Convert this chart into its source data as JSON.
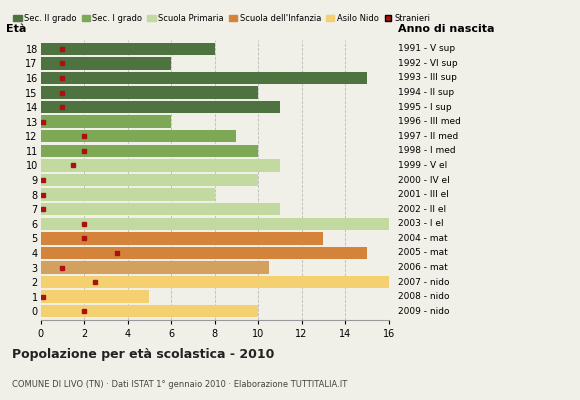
{
  "ages": [
    18,
    17,
    16,
    15,
    14,
    13,
    12,
    11,
    10,
    9,
    8,
    7,
    6,
    5,
    4,
    3,
    2,
    1,
    0
  ],
  "bar_values": [
    8,
    6,
    15,
    10,
    11,
    6,
    9,
    10,
    11,
    10,
    8,
    11,
    16,
    13,
    15,
    10.5,
    16,
    5,
    10
  ],
  "bar_colors": [
    "#4e7340",
    "#4e7340",
    "#4e7340",
    "#4e7340",
    "#4e7340",
    "#7da856",
    "#7da856",
    "#7da856",
    "#c2d9a0",
    "#c2d9a0",
    "#c2d9a0",
    "#c2d9a0",
    "#c2d9a0",
    "#d4833a",
    "#d4833a",
    "#d4a060",
    "#f5d070",
    "#f5d070",
    "#f5d070"
  ],
  "stranieri_x": [
    1,
    1,
    1,
    1,
    1,
    0.1,
    2,
    2,
    1.5,
    0.1,
    0.1,
    0.1,
    2,
    2,
    3.5,
    1,
    2.5,
    0.1,
    2
  ],
  "year_labels": [
    "1991 - V sup",
    "1992 - VI sup",
    "1993 - III sup",
    "1994 - II sup",
    "1995 - I sup",
    "1996 - III med",
    "1997 - II med",
    "1998 - I med",
    "1999 - V el",
    "2000 - IV el",
    "2001 - III el",
    "2002 - II el",
    "2003 - I el",
    "2004 - mat",
    "2005 - mat",
    "2006 - mat",
    "2007 - nido",
    "2008 - nido",
    "2009 - nido"
  ],
  "legend_labels": [
    "Sec. II grado",
    "Sec. I grado",
    "Scuola Primaria",
    "Scuola dell'Infanzia",
    "Asilo Nido",
    "Stranieri"
  ],
  "legend_colors": [
    "#4e7340",
    "#7da856",
    "#c2d9a0",
    "#d4833a",
    "#f5d070",
    "#aa1111"
  ],
  "title": "Popolazione per età scolastica - 2010",
  "subtitle": "COMUNE DI LIVO (TN) · Dati ISTAT 1° gennaio 2010 · Elaborazione TUTTITALIA.IT",
  "xlabel_eta": "Età",
  "xlabel_anno": "Anno di nascita",
  "xlim": [
    0,
    16
  ],
  "xticks": [
    0,
    2,
    4,
    6,
    8,
    10,
    12,
    14,
    16
  ],
  "bg_color": "#f0f0e8",
  "bar_height": 0.85
}
